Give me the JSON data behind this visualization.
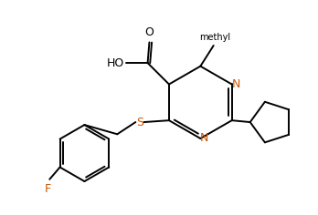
{
  "bg_color": "#ffffff",
  "line_color": "#000000",
  "N_color": "#cc5500",
  "S_color": "#cc5500",
  "F_color": "#cc5500",
  "line_width": 1.4,
  "figsize": [
    3.48,
    2.36
  ],
  "dpi": 100,
  "xlim": [
    0,
    9.0
  ],
  "ylim": [
    0,
    6.1
  ]
}
